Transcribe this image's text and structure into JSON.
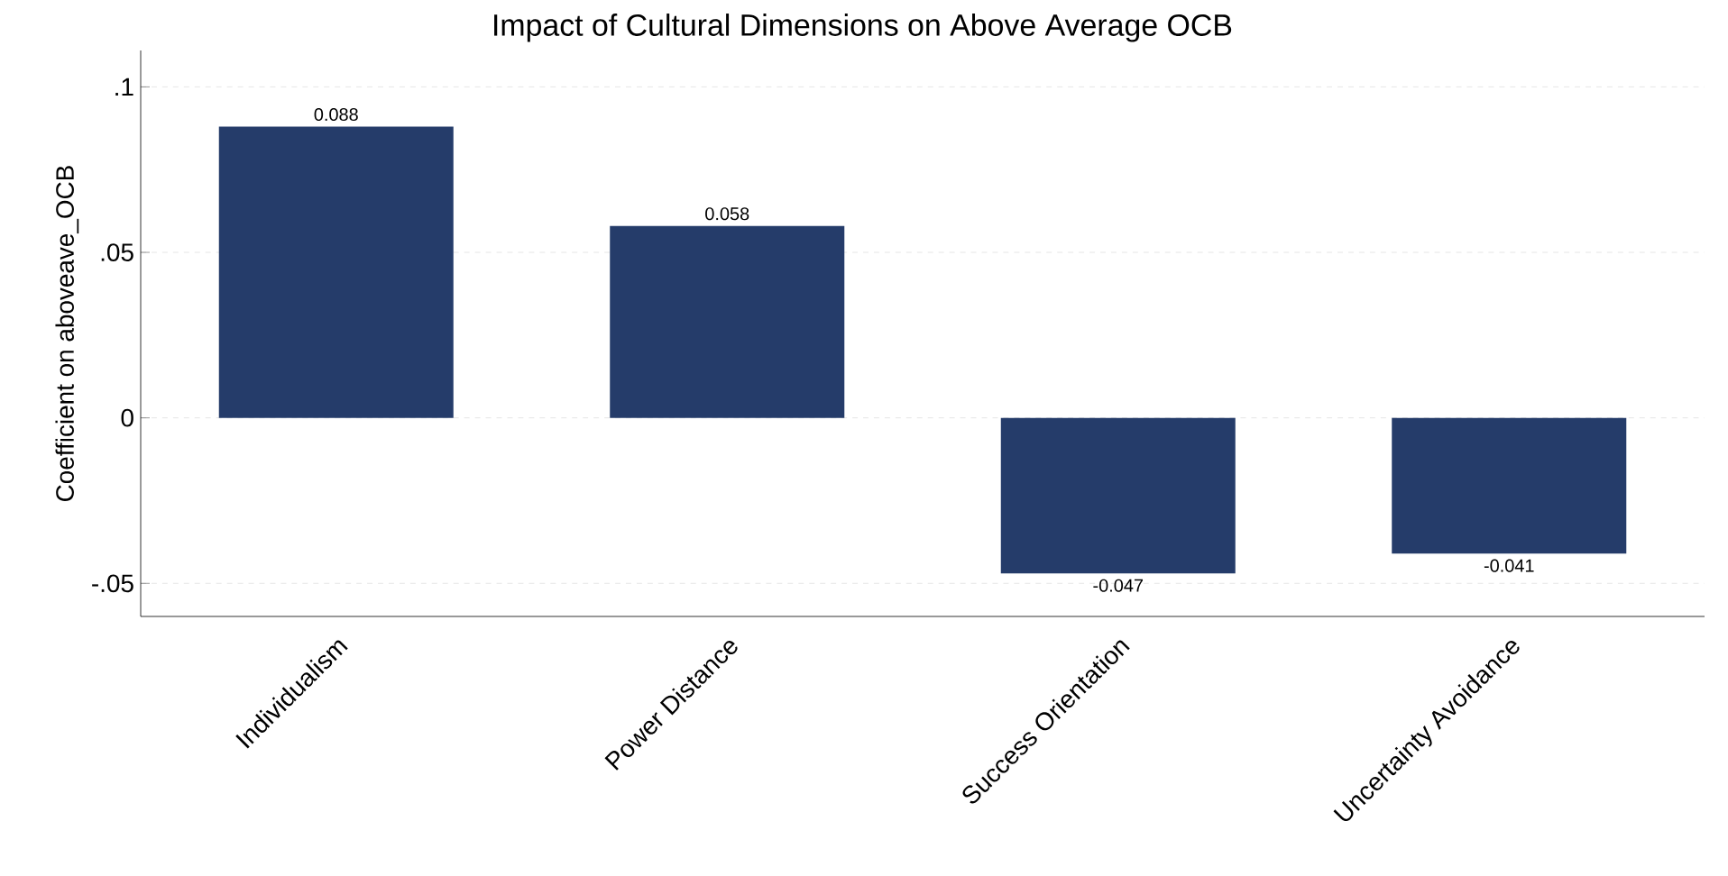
{
  "chart_data": {
    "type": "bar",
    "title": "Impact of Cultural Dimensions on Above Average OCB",
    "ylabel": "Coefficient on aboveave_OCB",
    "categories": [
      "Individualism",
      "Power Distance",
      "Success Orientation",
      "Uncertainty Avoidance"
    ],
    "values": [
      0.088,
      0.058,
      -0.047,
      -0.041
    ],
    "value_labels": [
      "0.088",
      "0.058",
      "-0.047",
      "-0.041"
    ],
    "color": "#253c6a",
    "ylim": [
      -0.06,
      0.111
    ],
    "yticks": [
      {
        "value": -0.05,
        "label": "-.05"
      },
      {
        "value": 0,
        "label": "0"
      },
      {
        "value": 0.05,
        "label": ".05"
      },
      {
        "value": 0.1,
        "label": ".1"
      }
    ],
    "grid": "y"
  }
}
